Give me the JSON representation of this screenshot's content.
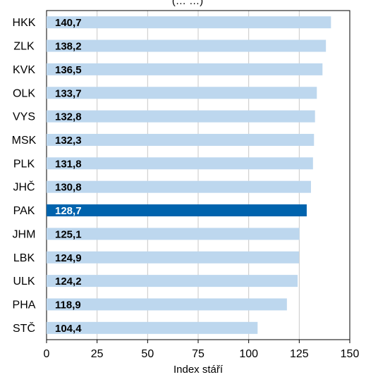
{
  "chart_data": {
    "type": "bar",
    "orientation": "horizontal",
    "title_fragment": "(… …)",
    "xlabel": "Index stáří",
    "ylabel": "",
    "xlim": [
      0,
      150
    ],
    "x_ticks": [
      "0",
      "25",
      "50",
      "75",
      "100",
      "125",
      "150"
    ],
    "grid": "vertical",
    "categories": [
      "HKK",
      "ZLK",
      "KVK",
      "OLK",
      "VYS",
      "MSK",
      "PLK",
      "JHČ",
      "PAK",
      "JHM",
      "LBK",
      "ULK",
      "PHA",
      "STČ"
    ],
    "values": [
      140.7,
      138.2,
      136.5,
      133.7,
      132.8,
      132.3,
      131.8,
      130.8,
      128.7,
      125.1,
      124.9,
      124.2,
      118.9,
      104.4
    ],
    "value_labels": [
      "140,7",
      "138,2",
      "136,5",
      "133,7",
      "132,8",
      "132,3",
      "131,8",
      "130,8",
      "128,7",
      "125,1",
      "124,9",
      "124,2",
      "118,9",
      "104,4"
    ],
    "highlight": "PAK",
    "colors": {
      "bar": "#bdd7ee",
      "bar_highlight": "#0063ad",
      "label": "#000000",
      "label_highlight": "#ffffff",
      "grid": "#c8c8c8",
      "axis": "#000000"
    }
  }
}
